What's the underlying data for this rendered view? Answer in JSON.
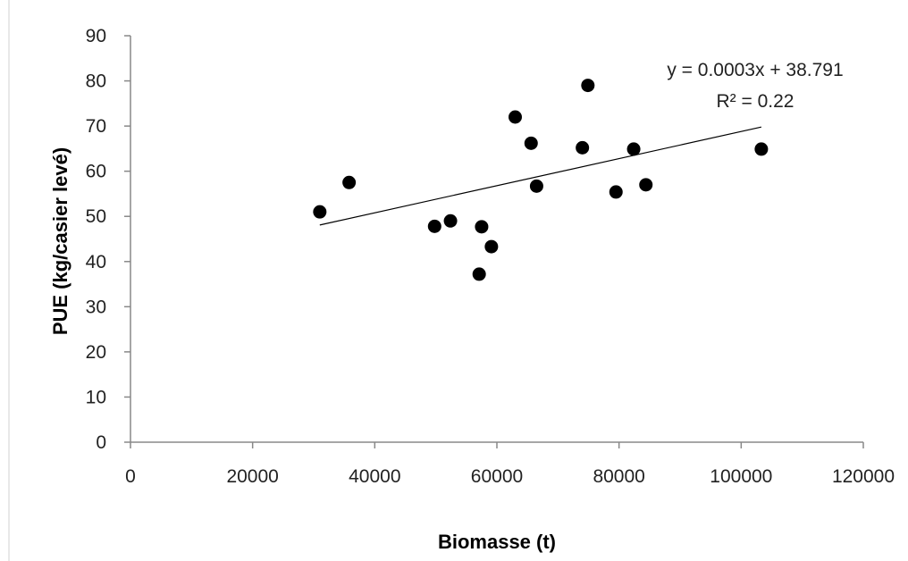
{
  "chart_data": {
    "type": "scatter",
    "title": "",
    "xlabel": "Biomasse (t)",
    "ylabel": "PUE (kg/casier levé)",
    "xlim": [
      0,
      120000
    ],
    "ylim": [
      0,
      90
    ],
    "x_ticks": [
      "0",
      "20000",
      "40000",
      "60000",
      "80000",
      "100000",
      "120000"
    ],
    "y_ticks": [
      "0",
      "10",
      "20",
      "30",
      "40",
      "50",
      "60",
      "70",
      "80",
      "90"
    ],
    "grid": false,
    "legend": "none",
    "series": [
      {
        "marker_color": "#000000",
        "points": [
          {
            "x": 31000,
            "y": 51
          },
          {
            "x": 35800,
            "y": 57.5
          },
          {
            "x": 49800,
            "y": 47.8
          },
          {
            "x": 52400,
            "y": 49
          },
          {
            "x": 57100,
            "y": 37.2
          },
          {
            "x": 57500,
            "y": 47.7
          },
          {
            "x": 59100,
            "y": 43.3
          },
          {
            "x": 63000,
            "y": 72
          },
          {
            "x": 65600,
            "y": 66.2
          },
          {
            "x": 66500,
            "y": 56.7
          },
          {
            "x": 74000,
            "y": 65.2
          },
          {
            "x": 74900,
            "y": 79
          },
          {
            "x": 79500,
            "y": 55.4
          },
          {
            "x": 82400,
            "y": 64.9
          },
          {
            "x": 84400,
            "y": 57
          },
          {
            "x": 103300,
            "y": 64.9
          }
        ]
      }
    ],
    "trendline": {
      "type": "linear",
      "slope": 0.0003,
      "intercept": 38.791,
      "color": "#000000"
    },
    "annotations": {
      "equation": "y = 0.0003x + 38.791",
      "r_squared": "R² = 0.22"
    }
  }
}
